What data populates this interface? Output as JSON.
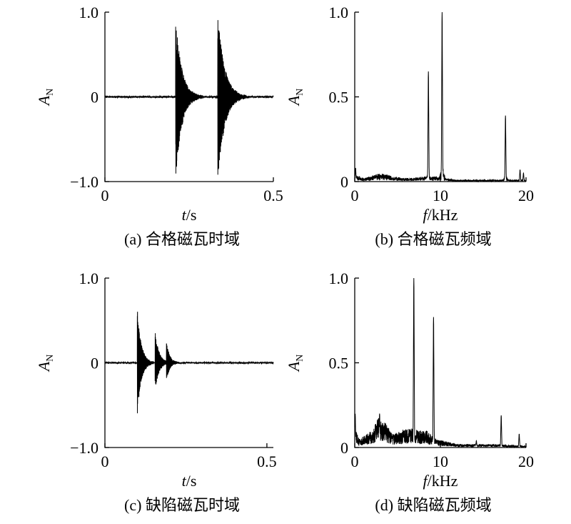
{
  "figure": {
    "panels": [
      {
        "caption": "(a) 合格磁瓦时域",
        "xlabel_italic": "t",
        "xlabel_unit": "/s",
        "ylabel_main": "A",
        "ylabel_sub": "N",
        "xticks": [
          {
            "value": 0,
            "label": "0"
          },
          {
            "value": 0.5,
            "label": "0.5"
          }
        ],
        "yticks": [
          {
            "value": -1,
            "label": "−1.0"
          },
          {
            "value": 0,
            "label": "0"
          },
          {
            "value": 1,
            "label": "1.0"
          }
        ]
      },
      {
        "caption": "(b) 合格磁瓦频域",
        "xlabel_italic": "f",
        "xlabel_unit": "/kHz",
        "ylabel_main": "A",
        "ylabel_sub": "N",
        "xticks": [
          {
            "value": 0,
            "label": "0"
          },
          {
            "value": 10,
            "label": "10"
          },
          {
            "value": 20,
            "label": "20"
          }
        ],
        "yticks": [
          {
            "value": 0,
            "label": "0"
          },
          {
            "value": 0.5,
            "label": "0.5"
          },
          {
            "value": 1,
            "label": "1.0"
          }
        ]
      },
      {
        "caption": "(c) 缺陷磁瓦时域",
        "xlabel_italic": "t",
        "xlabel_unit": "/s",
        "ylabel_main": "A",
        "ylabel_sub": "N",
        "xticks": [
          {
            "value": 0,
            "label": "0"
          },
          {
            "value": 0.5,
            "label": "0.5"
          }
        ],
        "yticks": [
          {
            "value": -1,
            "label": "−1.0"
          },
          {
            "value": 0,
            "label": "0"
          },
          {
            "value": 1,
            "label": "1.0"
          }
        ]
      },
      {
        "caption": "(d) 缺陷磁瓦频域",
        "xlabel_italic": "f",
        "xlabel_unit": "/kHz",
        "ylabel_main": "A",
        "ylabel_sub": "N",
        "xticks": [
          {
            "value": 0,
            "label": "0"
          },
          {
            "value": 10,
            "label": "10"
          },
          {
            "value": 20,
            "label": "20"
          }
        ],
        "yticks": [
          {
            "value": 0,
            "label": "0"
          },
          {
            "value": 0.5,
            "label": "0.5"
          },
          {
            "value": 1,
            "label": "1.0"
          }
        ]
      }
    ]
  },
  "chart_data": [
    {
      "type": "line",
      "title": "(a) 合格磁瓦时域",
      "xlabel": "t/s",
      "ylabel": "AN",
      "xlim": [
        0,
        0.5
      ],
      "ylim": [
        -1.0,
        1.0
      ],
      "grid": false,
      "series": [
        {
          "signal": "decaying_bursts",
          "baseline_noise": 0.01,
          "bursts": [
            {
              "t0": 0.21,
              "t_end": 0.29,
              "peak_pos": 0.95,
              "peak_neg": -1.0,
              "tau": 0.018
            },
            {
              "t0": 0.335,
              "t_end": 0.42,
              "peak_pos": 1.0,
              "peak_neg": -1.0,
              "tau": 0.02
            }
          ]
        }
      ]
    },
    {
      "type": "line",
      "title": "(b) 合格磁瓦频域",
      "xlabel": "f/kHz",
      "ylabel": "AN",
      "xlim": [
        0,
        20
      ],
      "ylim": [
        0,
        1.0
      ],
      "grid": false,
      "series": [
        {
          "signal": "spectrum",
          "noise_floor": [
            [
              0,
              0.04
            ],
            [
              1.0,
              0.02
            ],
            [
              3.0,
              0.05
            ],
            [
              4.5,
              0.03
            ],
            [
              6.0,
              0.02
            ],
            [
              8.0,
              0.03
            ],
            [
              9.5,
              0.03
            ],
            [
              10.5,
              0.02
            ],
            [
              12,
              0.01
            ],
            [
              17,
              0.01
            ],
            [
              20,
              0.01
            ]
          ],
          "peaks": [
            {
              "x": 0.1,
              "y": 0.08
            },
            {
              "x": 8.6,
              "y": 0.65
            },
            {
              "x": 10.2,
              "y": 1.0
            },
            {
              "x": 17.6,
              "y": 0.39
            },
            {
              "x": 19.3,
              "y": 0.07
            },
            {
              "x": 19.7,
              "y": 0.05
            }
          ]
        }
      ]
    },
    {
      "type": "line",
      "title": "(c) 缺陷磁瓦时域",
      "xlabel": "t/s",
      "ylabel": "AN",
      "xlim": [
        0,
        0.52
      ],
      "ylim": [
        -1.0,
        1.0
      ],
      "grid": false,
      "series": [
        {
          "signal": "decaying_bursts",
          "baseline_noise": 0.008,
          "bursts": [
            {
              "t0": 0.1,
              "t_end": 0.15,
              "peak_pos": 0.65,
              "peak_neg": -0.62,
              "tau": 0.012
            },
            {
              "t0": 0.155,
              "t_end": 0.2,
              "peak_pos": 0.38,
              "peak_neg": -0.32,
              "tau": 0.012
            },
            {
              "t0": 0.19,
              "t_end": 0.23,
              "peak_pos": 0.25,
              "peak_neg": -0.2,
              "tau": 0.01
            }
          ]
        }
      ]
    },
    {
      "type": "line",
      "title": "(d) 缺陷磁瓦频域",
      "xlabel": "f/kHz",
      "ylabel": "AN",
      "xlim": [
        0,
        20
      ],
      "ylim": [
        0,
        1.0
      ],
      "grid": false,
      "series": [
        {
          "signal": "spectrum",
          "noise_floor": [
            [
              0,
              0.12
            ],
            [
              0.5,
              0.05
            ],
            [
              2.0,
              0.1
            ],
            [
              2.8,
              0.18
            ],
            [
              3.5,
              0.15
            ],
            [
              4.5,
              0.08
            ],
            [
              5.5,
              0.1
            ],
            [
              6.3,
              0.12
            ],
            [
              7.5,
              0.1
            ],
            [
              8.5,
              0.1
            ],
            [
              9.5,
              0.05
            ],
            [
              12,
              0.02
            ],
            [
              16,
              0.02
            ],
            [
              20,
              0.01
            ]
          ],
          "peaks": [
            {
              "x": 0.05,
              "y": 0.2
            },
            {
              "x": 2.9,
              "y": 0.2
            },
            {
              "x": 6.9,
              "y": 1.0
            },
            {
              "x": 9.2,
              "y": 0.77
            },
            {
              "x": 14.2,
              "y": 0.04
            },
            {
              "x": 17.1,
              "y": 0.19
            },
            {
              "x": 19.2,
              "y": 0.08
            }
          ]
        }
      ]
    }
  ]
}
